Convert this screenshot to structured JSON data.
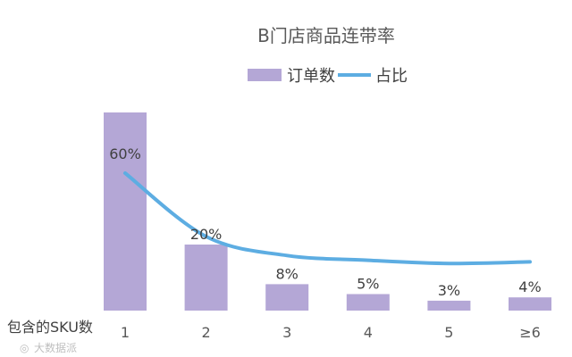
{
  "chart_data": {
    "type": "bar",
    "title": "B门店商品连带率",
    "xlabel": "包含的SKU数",
    "categories": [
      "1",
      "2",
      "3",
      "4",
      "5",
      "≥6"
    ],
    "series": [
      {
        "name": "订单数",
        "type": "bar",
        "color": "#b4a7d6",
        "values": [
          60,
          20,
          8,
          5,
          3,
          4
        ]
      },
      {
        "name": "占比",
        "type": "line",
        "smooth": true,
        "color": "#5dade2",
        "values": [
          60,
          20,
          8,
          5,
          3,
          4
        ]
      }
    ],
    "data_labels": [
      "60%",
      "20%",
      "8%",
      "5%",
      "3%",
      "4%"
    ],
    "legend_position": "top",
    "grid": false,
    "ylim": [
      0,
      70
    ]
  },
  "watermark": "大数据派"
}
